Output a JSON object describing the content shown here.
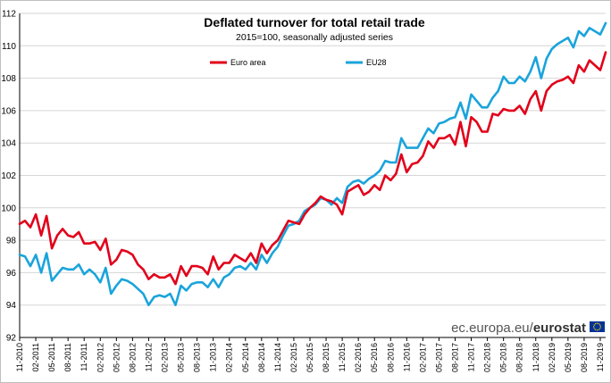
{
  "colors": {
    "euro_area": "#e2001a",
    "eu28": "#1aa4db",
    "grid": "#d6d6d6",
    "eu_flag": "#003399",
    "eu_star": "#ffcc00"
  },
  "branding": {
    "domain": "ec.europa.eu/",
    "name": "eurostat",
    "logo_icon": "eu-flag-icon"
  },
  "chart_data": {
    "type": "line",
    "title": "Deflated turnover for total retail trade",
    "subtitle": "2015=100, seasonally adjusted series",
    "xlabel": "",
    "ylabel": "",
    "ylim": [
      92,
      112
    ],
    "y_ticks": [
      92,
      94,
      96,
      98,
      100,
      102,
      104,
      106,
      108,
      110,
      112
    ],
    "grid": true,
    "legend_position": "top",
    "x_tick_labels": [
      "11-2010",
      "02-2011",
      "05-2011",
      "08-2011",
      "11-2011",
      "02-2012",
      "05-2012",
      "08-2012",
      "11-2012",
      "02-2013",
      "05-2013",
      "08-2013",
      "11-2013",
      "02-2014",
      "05-2014",
      "08-2014",
      "11-2014",
      "02-2015",
      "05-2015",
      "08-2015",
      "11-2015",
      "02-2016",
      "05-2016",
      "08-2016",
      "11-2016",
      "02-2017",
      "05-2017",
      "08-2017",
      "11-2017",
      "02-2018",
      "05-2018",
      "08-2018",
      "11-2018",
      "02-2019",
      "05-2019",
      "08-2019",
      "11-2019"
    ],
    "series": [
      {
        "name": "Euro area",
        "color": "#e2001a",
        "values": [
          99.0,
          99.2,
          98.8,
          99.6,
          98.3,
          99.5,
          97.5,
          98.3,
          98.7,
          98.3,
          98.2,
          98.5,
          97.8,
          97.8,
          97.9,
          97.4,
          98.1,
          96.5,
          96.8,
          97.4,
          97.3,
          97.1,
          96.5,
          96.2,
          95.6,
          95.9,
          95.7,
          95.7,
          95.9,
          95.3,
          96.4,
          95.8,
          96.4,
          96.4,
          96.3,
          95.9,
          97.0,
          96.2,
          96.6,
          96.6,
          97.1,
          96.9,
          96.7,
          97.2,
          96.6,
          97.8,
          97.2,
          97.7,
          98.0,
          98.6,
          99.2,
          99.1,
          99.0,
          99.6,
          100.0,
          100.3,
          100.7,
          100.5,
          100.4,
          100.2,
          99.6,
          101.0,
          101.2,
          101.4,
          100.8,
          101.0,
          101.4,
          101.1,
          102.0,
          101.7,
          102.1,
          103.3,
          102.2,
          102.7,
          102.8,
          103.2,
          104.1,
          103.7,
          104.3,
          104.3,
          104.5,
          103.9,
          105.3,
          103.8,
          105.6,
          105.3,
          104.7,
          104.7,
          105.8,
          105.7,
          106.1,
          106.0,
          106.0,
          106.3,
          105.8,
          106.7,
          107.2,
          106.0,
          107.2,
          107.6,
          107.8,
          107.9,
          108.1,
          107.7,
          108.8,
          108.4,
          109.1,
          108.8,
          108.5,
          109.6
        ]
      },
      {
        "name": "EU28",
        "color": "#1aa4db",
        "values": [
          97.1,
          97.0,
          96.4,
          97.1,
          96.0,
          97.2,
          95.5,
          95.9,
          96.3,
          96.2,
          96.2,
          96.5,
          95.9,
          96.2,
          95.9,
          95.4,
          96.3,
          94.7,
          95.2,
          95.6,
          95.5,
          95.3,
          95.0,
          94.7,
          94.0,
          94.5,
          94.6,
          94.5,
          94.7,
          94.0,
          95.2,
          94.9,
          95.3,
          95.4,
          95.4,
          95.1,
          95.6,
          95.1,
          95.7,
          95.9,
          96.3,
          96.4,
          96.2,
          96.6,
          96.2,
          97.1,
          96.6,
          97.2,
          97.6,
          98.3,
          98.9,
          99.0,
          99.2,
          99.8,
          100.0,
          100.2,
          100.6,
          100.5,
          100.2,
          100.6,
          100.3,
          101.3,
          101.6,
          101.7,
          101.5,
          101.8,
          102.0,
          102.3,
          102.9,
          102.8,
          102.8,
          104.3,
          103.7,
          103.7,
          103.7,
          104.3,
          104.9,
          104.6,
          105.2,
          105.3,
          105.5,
          105.6,
          106.5,
          105.5,
          107.0,
          106.6,
          106.2,
          106.2,
          106.8,
          107.2,
          108.1,
          107.7,
          107.7,
          108.1,
          107.8,
          108.4,
          109.3,
          108.0,
          109.2,
          109.8,
          110.1,
          110.3,
          110.5,
          109.9,
          110.9,
          110.6,
          111.1,
          110.9,
          110.7,
          111.4
        ]
      }
    ]
  }
}
